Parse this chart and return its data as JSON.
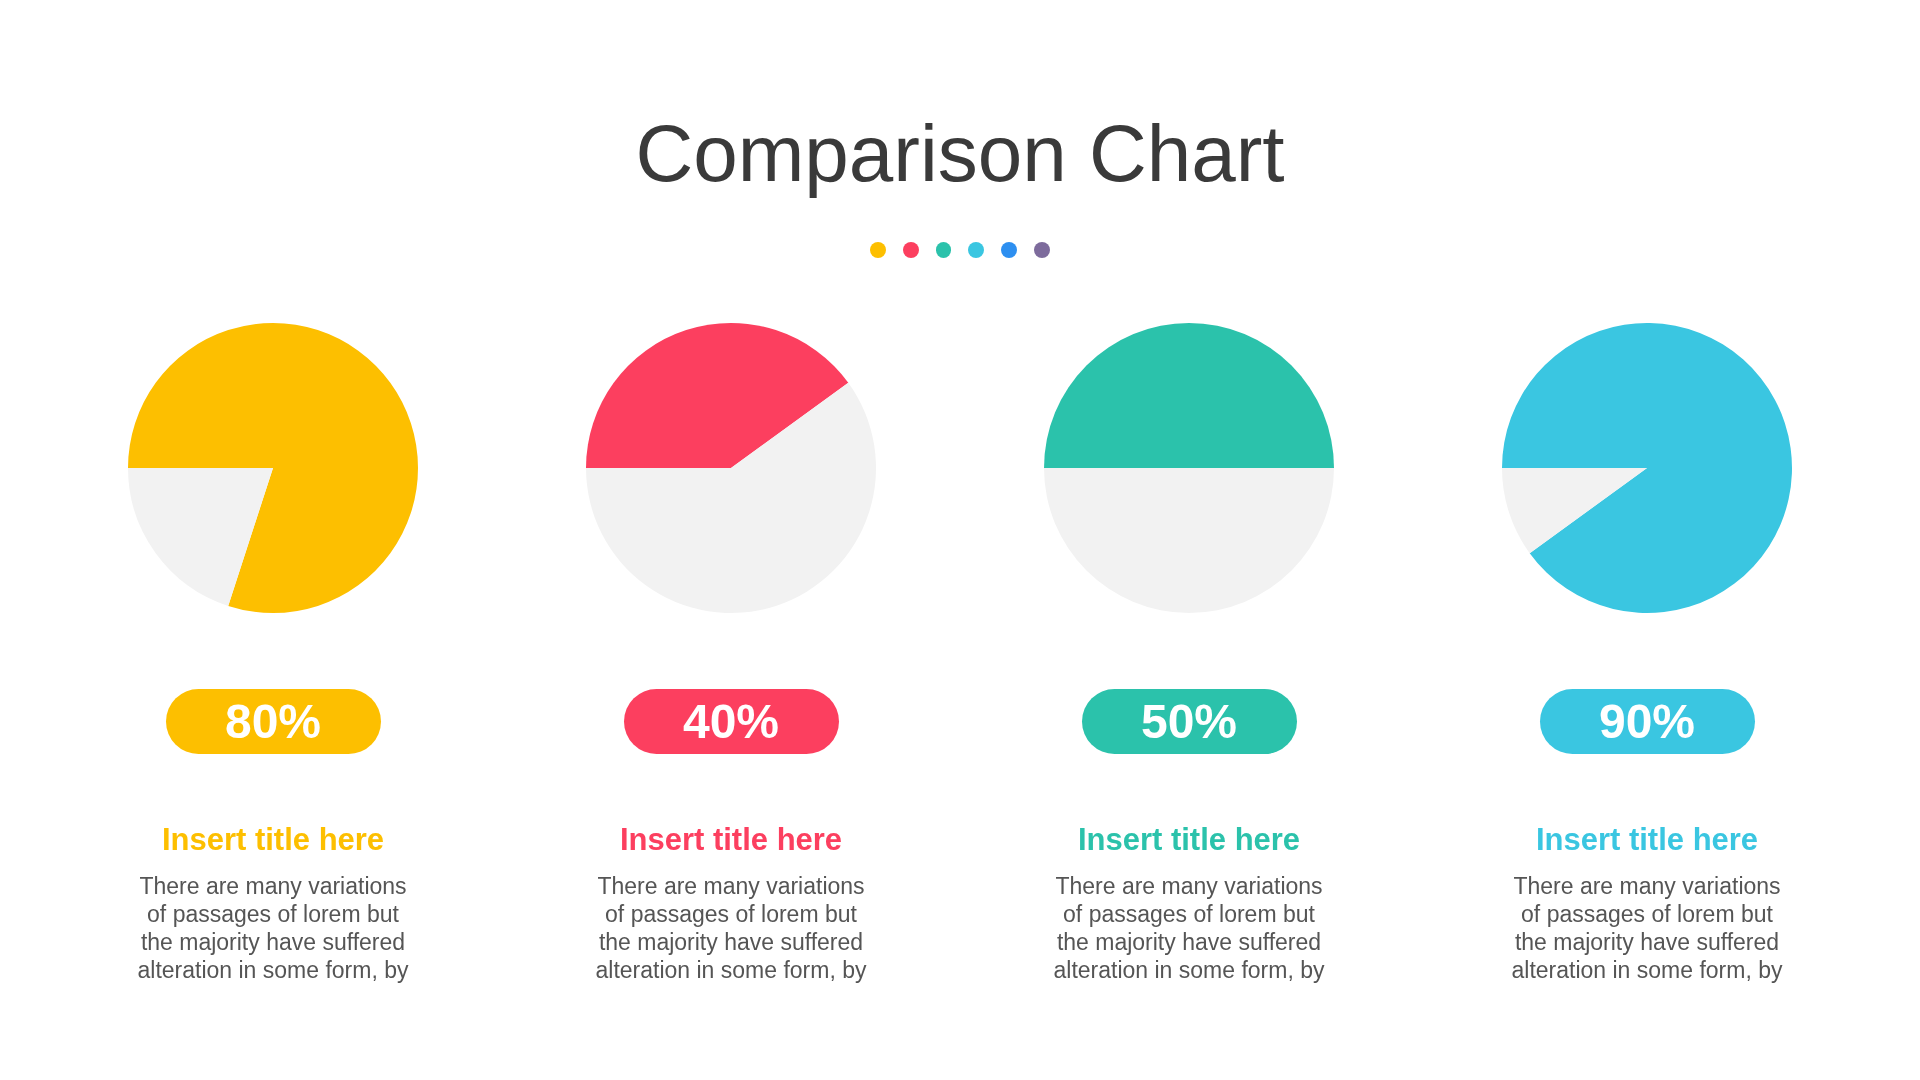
{
  "chart_data": [
    {
      "type": "pie",
      "title": "Comparison Chart",
      "subtitle": "Insert title here",
      "categories": [
        null,
        null
      ],
      "values": [
        80,
        20
      ],
      "colors": [
        "#fdbf00",
        "#f2f2f2"
      ],
      "annotations": [
        "80%",
        "There are many variations of passages of lorem but the majority have suffered alteration in some form, by"
      ]
    },
    {
      "type": "pie",
      "subtitle": "Insert title here",
      "categories": [
        null,
        null
      ],
      "values": [
        40,
        60
      ],
      "colors": [
        "#fc3f5f",
        "#f2f2f2"
      ],
      "annotations": [
        "40%",
        "There are many variations of passages of lorem but the majority have suffered alteration in some form, by"
      ]
    },
    {
      "type": "pie",
      "subtitle": "Insert title here",
      "categories": [
        null,
        null
      ],
      "values": [
        50,
        50
      ],
      "colors": [
        "#2bc2ab",
        "#f2f2f2"
      ],
      "annotations": [
        "50%",
        "There are many variations of passages of lorem but the majority have suffered alteration in some form, by"
      ]
    },
    {
      "type": "pie",
      "subtitle": "Insert title here",
      "categories": [
        null,
        null
      ],
      "values": [
        90,
        10
      ],
      "colors": [
        "#3ac6e1",
        "#f2f2f2"
      ],
      "annotations": [
        "90%",
        "There are many variations of passages of lorem but the majority have suffered alteration in some form, by"
      ]
    }
  ]
}
